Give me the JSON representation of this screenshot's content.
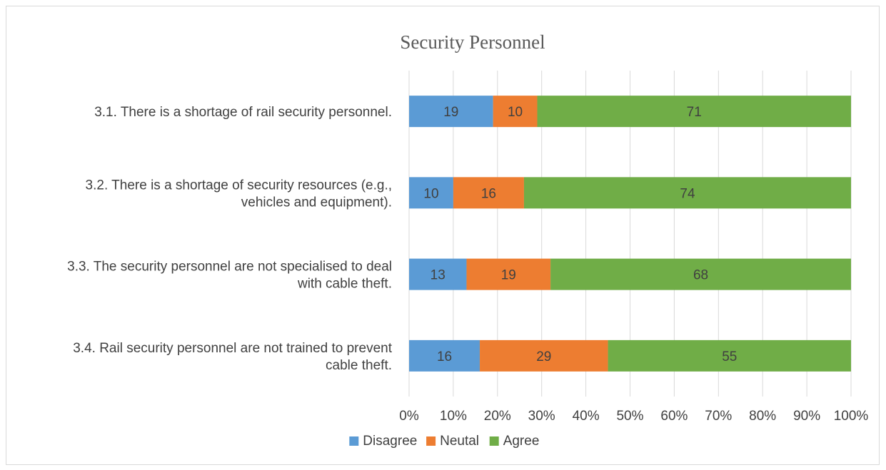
{
  "chart_data": {
    "type": "bar",
    "orientation": "horizontal",
    "stacked": "percent",
    "title": "Security Personnel",
    "categories": [
      [
        "3.1. There is a shortage of rail security personnel."
      ],
      [
        "3.2. There is a shortage of security resources (e.g.,",
        "vehicles and equipment)."
      ],
      [
        "3.3. The security personnel are not specialised to deal",
        "with cable theft."
      ],
      [
        "3.4. Rail security personnel are not trained to prevent",
        "cable theft."
      ]
    ],
    "series": [
      {
        "name": "Disagree",
        "color": "#5b9bd5",
        "values": [
          19,
          10,
          13,
          16
        ]
      },
      {
        "name": "Neutal",
        "color": "#ed7d31",
        "values": [
          10,
          16,
          19,
          29
        ]
      },
      {
        "name": "Agree",
        "color": "#70ad47",
        "values": [
          71,
          74,
          68,
          55
        ]
      }
    ],
    "x_ticks": [
      "0%",
      "10%",
      "20%",
      "30%",
      "40%",
      "50%",
      "60%",
      "70%",
      "80%",
      "90%",
      "100%"
    ],
    "xlim": [
      0,
      100
    ],
    "grid": true,
    "legend_position": "bottom"
  }
}
